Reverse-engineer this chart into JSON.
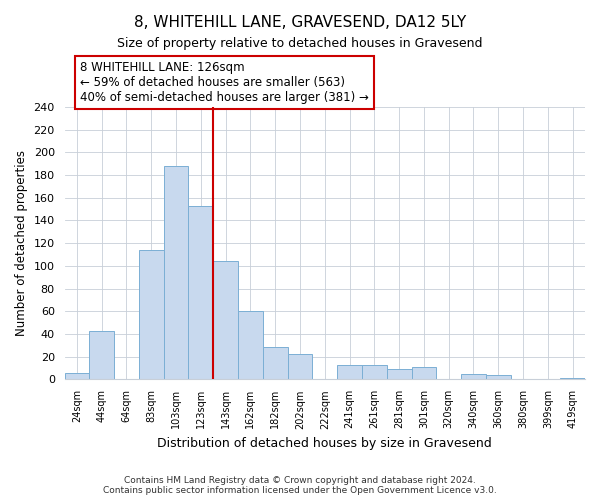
{
  "title": "8, WHITEHILL LANE, GRAVESEND, DA12 5LY",
  "subtitle": "Size of property relative to detached houses in Gravesend",
  "xlabel": "Distribution of detached houses by size in Gravesend",
  "ylabel": "Number of detached properties",
  "bin_labels": [
    "24sqm",
    "44sqm",
    "64sqm",
    "83sqm",
    "103sqm",
    "123sqm",
    "143sqm",
    "162sqm",
    "182sqm",
    "202sqm",
    "222sqm",
    "241sqm",
    "261sqm",
    "281sqm",
    "301sqm",
    "320sqm",
    "340sqm",
    "360sqm",
    "380sqm",
    "399sqm",
    "419sqm"
  ],
  "bar_heights": [
    6,
    43,
    0,
    114,
    188,
    153,
    104,
    60,
    29,
    22,
    0,
    13,
    13,
    9,
    11,
    0,
    5,
    4,
    0,
    0,
    1
  ],
  "bar_color": "#c8d9ee",
  "bar_edge_color": "#7bafd4",
  "vline_x_index": 5,
  "vline_color": "#cc0000",
  "annotation_title": "8 WHITEHILL LANE: 126sqm",
  "annotation_line1": "← 59% of detached houses are smaller (563)",
  "annotation_line2": "40% of semi-detached houses are larger (381) →",
  "annotation_box_color": "#ffffff",
  "annotation_box_edge": "#cc0000",
  "ylim": [
    0,
    240
  ],
  "yticks": [
    0,
    20,
    40,
    60,
    80,
    100,
    120,
    140,
    160,
    180,
    200,
    220,
    240
  ],
  "footer1": "Contains HM Land Registry data © Crown copyright and database right 2024.",
  "footer2": "Contains public sector information licensed under the Open Government Licence v3.0."
}
